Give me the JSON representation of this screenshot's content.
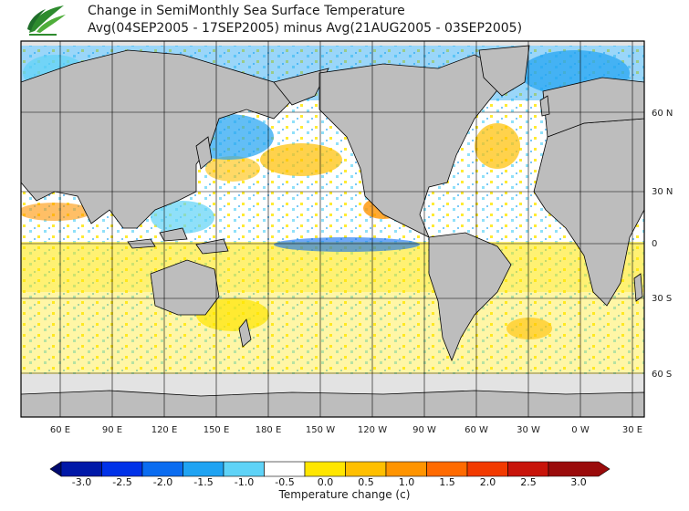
{
  "title": {
    "line1": "Change in SemiMonthly Sea Surface Temperature",
    "line2": "Avg(04SEP2005 - 17SEP2005) minus Avg(21AUG2005 - 03SEP2005)"
  },
  "map": {
    "lat_labels": [
      "60 N",
      "30 N",
      "0",
      "30 S",
      "60 S"
    ],
    "lon_labels": [
      "60 E",
      "90 E",
      "120 E",
      "150 E",
      "180 E",
      "150 W",
      "120 W",
      "90 W",
      "60 W",
      "30 W",
      "0 W",
      "30 E"
    ],
    "colors": {
      "land": "#bdbdbd",
      "ice": "#e3e3e3",
      "ocean_neutral": "#ffffff",
      "border": "#000000"
    }
  },
  "colorbar": {
    "title": "Temperature change  (c)",
    "tick_labels": [
      "-3.0",
      "-2.5",
      "-2.0",
      "-1.5",
      "-1.0",
      "-0.5",
      "0.0",
      "0.5",
      "1.0",
      "1.5",
      "2.0",
      "2.5",
      "3.0"
    ],
    "colors": [
      "#000a6e",
      "#0018a8",
      "#0032e8",
      "#0a6cf0",
      "#1fa3f2",
      "#5fd3f7",
      "#ffffff",
      "#ffe600",
      "#ffbf00",
      "#ff9400",
      "#ff6a00",
      "#f23a00",
      "#c8140a",
      "#9a0b0b"
    ]
  }
}
